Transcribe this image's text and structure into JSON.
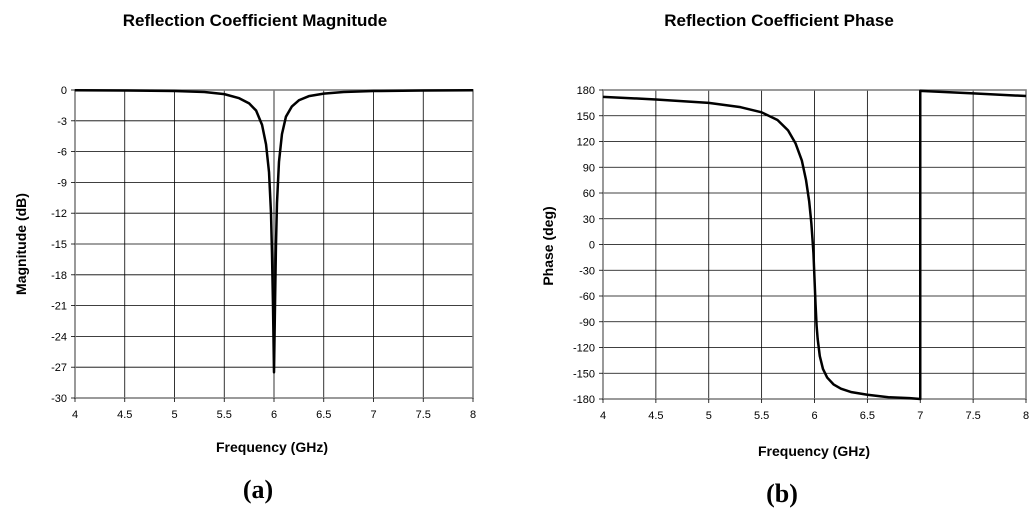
{
  "chart_data": [
    {
      "type": "line",
      "title": "Reflection Coefficient Magnitude",
      "xlabel": "Frequency (GHz)",
      "ylabel": "Magnitude (dB)",
      "panel_label": "(a)",
      "xlim": [
        4,
        8
      ],
      "ylim": [
        -30,
        0
      ],
      "x_ticks": [
        "4",
        "4.5",
        "5",
        "5.5",
        "6",
        "6.5",
        "7",
        "7.5",
        "8"
      ],
      "y_ticks": [
        "0",
        "-3",
        "-6",
        "-9",
        "-12",
        "-15",
        "-18",
        "-21",
        "-24",
        "-27",
        "-30"
      ],
      "grid": true,
      "series": [
        {
          "x": [
            4.0,
            4.5,
            5.0,
            5.3,
            5.5,
            5.65,
            5.75,
            5.82,
            5.88,
            5.92,
            5.95,
            5.97,
            5.98,
            5.99,
            6.0,
            6.01,
            6.02,
            6.03,
            6.05,
            6.08,
            6.12,
            6.18,
            6.25,
            6.35,
            6.5,
            6.7,
            7.0,
            7.5,
            8.0
          ],
          "y": [
            -0.02,
            -0.05,
            -0.1,
            -0.2,
            -0.4,
            -0.8,
            -1.3,
            -2.0,
            -3.4,
            -5.3,
            -8.0,
            -12.0,
            -16.0,
            -21.0,
            -27.5,
            -21.0,
            -15.0,
            -11.0,
            -7.0,
            -4.3,
            -2.6,
            -1.6,
            -1.0,
            -0.6,
            -0.35,
            -0.2,
            -0.1,
            -0.05,
            -0.03
          ]
        }
      ]
    },
    {
      "type": "line",
      "title": "Reflection Coefficient Phase",
      "xlabel": "Frequency (GHz)",
      "ylabel": "Phase (deg)",
      "panel_label": "(b)",
      "xlim": [
        4,
        8
      ],
      "ylim": [
        -180,
        180
      ],
      "x_ticks": [
        "4",
        "4.5",
        "5",
        "5.5",
        "6",
        "6.5",
        "7",
        "7.5",
        "8"
      ],
      "y_ticks": [
        "180",
        "150",
        "120",
        "90",
        "60",
        "30",
        "0",
        "-30",
        "-60",
        "-90",
        "-120",
        "-150",
        "-180"
      ],
      "grid": true,
      "series": [
        {
          "x": [
            4.0,
            4.5,
            5.0,
            5.3,
            5.5,
            5.65,
            5.75,
            5.82,
            5.88,
            5.92,
            5.95,
            5.97,
            5.98,
            5.99,
            6.0,
            6.01,
            6.02,
            6.03,
            6.05,
            6.08,
            6.12,
            6.18,
            6.25,
            6.35,
            6.5,
            6.7,
            6.9,
            7.0,
            7.0,
            7.5,
            8.0
          ],
          "y": [
            172,
            169,
            165,
            160,
            154,
            145,
            133,
            118,
            98,
            75,
            50,
            25,
            8,
            -10,
            -40,
            -70,
            -95,
            -110,
            -130,
            -145,
            -155,
            -163,
            -168,
            -172,
            -175,
            -178,
            -179,
            -180,
            179,
            176,
            173
          ]
        }
      ]
    }
  ]
}
